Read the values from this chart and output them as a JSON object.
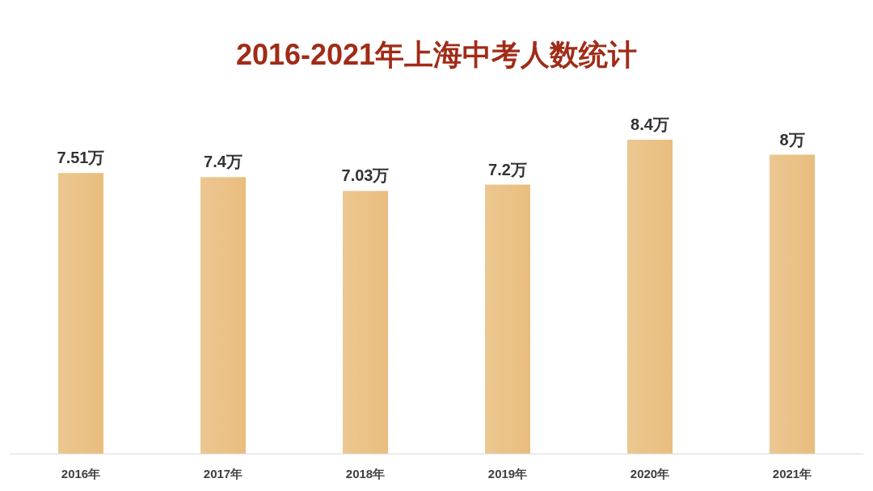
{
  "chart_data": {
    "type": "bar",
    "title": "2016-2021年上海中考人数统计",
    "categories": [
      "2016年",
      "2017年",
      "2018年",
      "2019年",
      "2020年",
      "2021年"
    ],
    "values": [
      7.51,
      7.4,
      7.03,
      7.2,
      8.4,
      8
    ],
    "value_labels": [
      "7.51万",
      "7.4万",
      "7.03万",
      "7.2万",
      "8.4万",
      "8万"
    ],
    "color": "#e9bd7e",
    "tick_labels": "x"
  }
}
